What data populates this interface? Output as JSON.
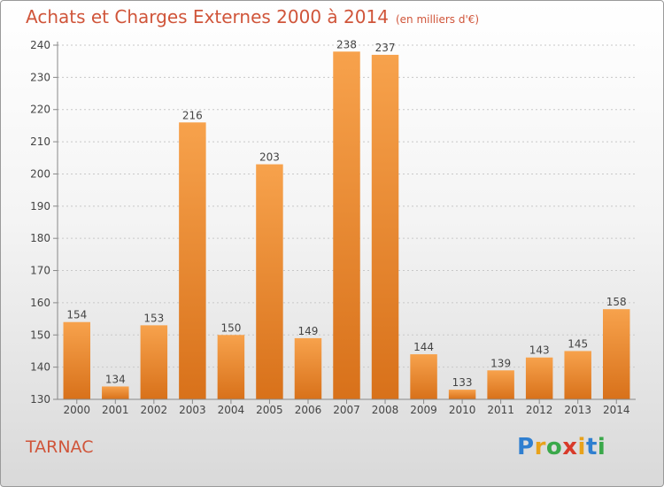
{
  "title": "Achats et Charges Externes 2000 à 2014",
  "subtitle": "(en milliers d'€)",
  "commune": "TARNAC",
  "logo": {
    "letters": [
      "P",
      "r",
      "o",
      "x",
      "i",
      "t",
      "i"
    ],
    "colors": [
      "#2f7fd0",
      "#e8a21a",
      "#3aa84a",
      "#d83a2a",
      "#e8a21a",
      "#2f7fd0",
      "#3aa84a"
    ]
  },
  "chart_data": {
    "type": "bar",
    "title": "Achats et Charges Externes 2000 à 2014",
    "xlabel": "",
    "ylabel": "",
    "categories": [
      "2000",
      "2001",
      "2002",
      "2003",
      "2004",
      "2005",
      "2006",
      "2007",
      "2008",
      "2009",
      "2010",
      "2011",
      "2012",
      "2013",
      "2014"
    ],
    "values": [
      154,
      134,
      153,
      216,
      150,
      203,
      149,
      238,
      237,
      144,
      133,
      139,
      143,
      145,
      158
    ],
    "ylim": [
      130,
      240
    ],
    "yticks": [
      130,
      140,
      150,
      160,
      170,
      180,
      190,
      200,
      210,
      220,
      230,
      240
    ],
    "grid": "horizontal-dashed",
    "bar_color": "#f0913a",
    "data_labels": true
  }
}
